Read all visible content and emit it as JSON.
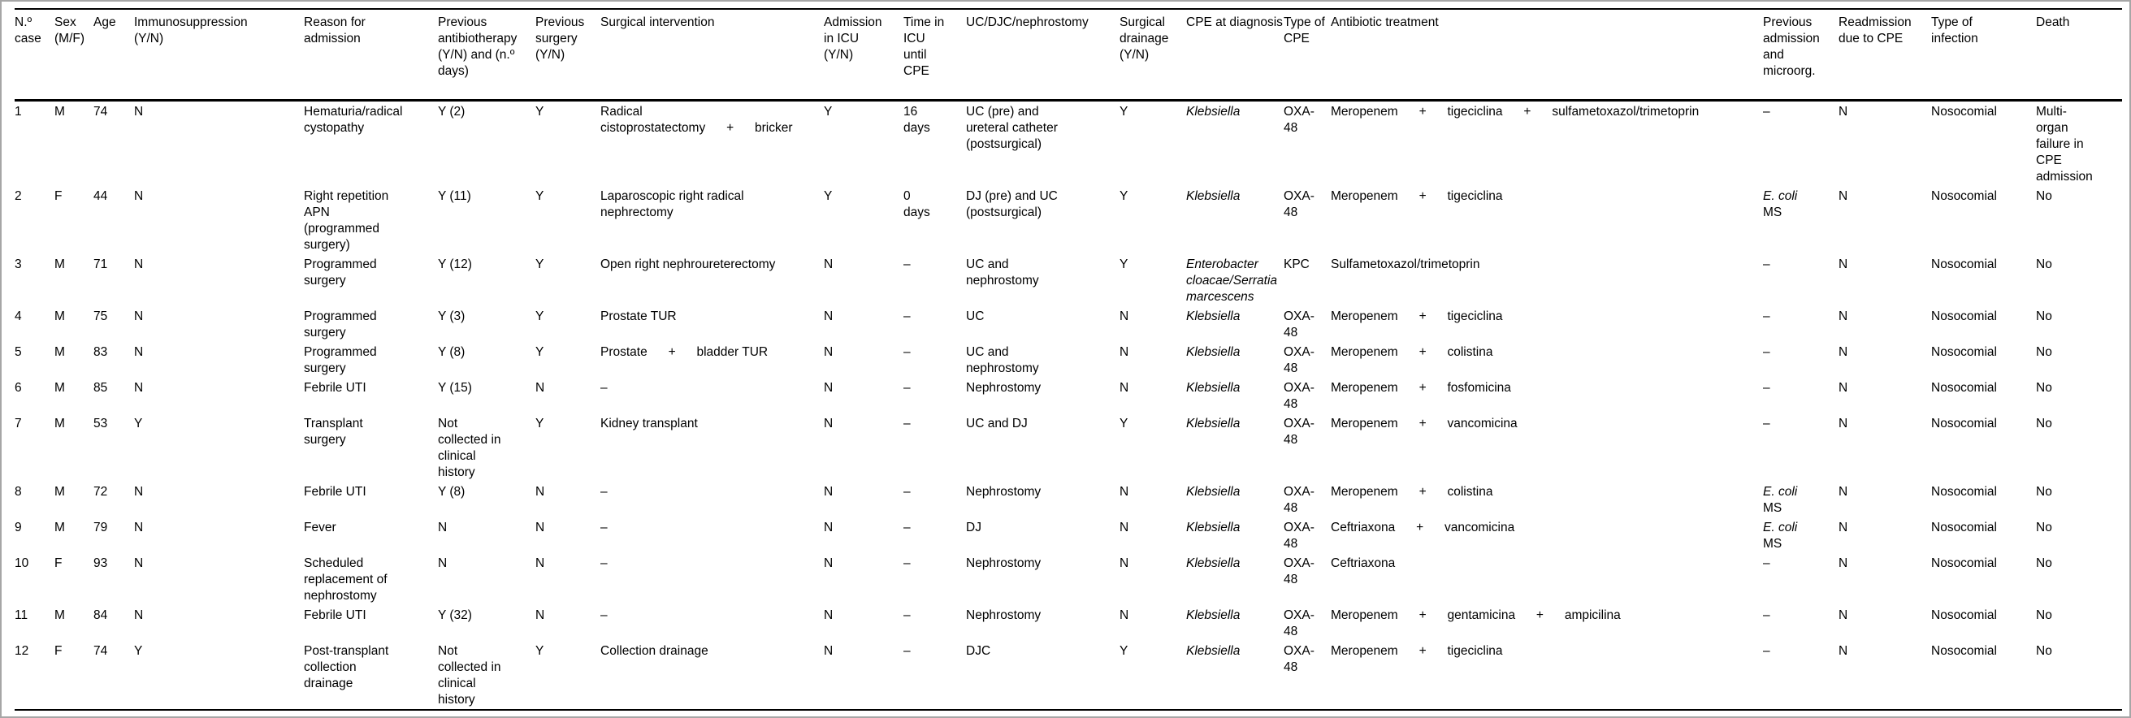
{
  "colors": {
    "background": "#ffffff",
    "text": "#000000",
    "rule": "#000000",
    "frame": "#a6a6a6"
  },
  "table": {
    "columns": [
      {
        "id": "case",
        "label": "N.º\ncase"
      },
      {
        "id": "sex",
        "label": "Sex\n(M/F)"
      },
      {
        "id": "age",
        "label": "Age"
      },
      {
        "id": "immunosuppression",
        "label": "Immunosuppression\n(Y/N)"
      },
      {
        "id": "reason",
        "label": "Reason for\nadmission"
      },
      {
        "id": "prev_antibiotherapy",
        "label": "Previous\nantibiotherapy\n(Y/N) and (n.º\ndays)"
      },
      {
        "id": "prev_surgery",
        "label": "Previous\nsurgery\n(Y/N)"
      },
      {
        "id": "surgical_intervention",
        "label": "Surgical intervention"
      },
      {
        "id": "icu_admission",
        "label": "Admission\nin ICU\n(Y/N)"
      },
      {
        "id": "icu_time",
        "label": "Time in\nICU\nuntil\nCPE"
      },
      {
        "id": "uc_djc_nephrostomy",
        "label": "UC/DJC/nephrostomy"
      },
      {
        "id": "surgical_drainage",
        "label": "Surgical\ndrainage\n(Y/N)"
      },
      {
        "id": "cpe_at_diagnosis",
        "label": "CPE at diagnosis"
      },
      {
        "id": "cpe_type",
        "label": "Type of\nCPE"
      },
      {
        "id": "antibiotic_treatment",
        "label": "Antibiotic treatment"
      },
      {
        "id": "previous_admission",
        "label": "Previous\nadmission\nand\nmicroorg."
      },
      {
        "id": "readmission",
        "label": "Readmission\ndue to CPE"
      },
      {
        "id": "infection_type",
        "label": "Type of\ninfection"
      },
      {
        "id": "death",
        "label": "Death"
      }
    ],
    "rows": [
      {
        "case": "1",
        "sex": "M",
        "age": "74",
        "immunosuppression": "N",
        "reason": "Hematuria/radical\ncystopathy",
        "prev_antibiotherapy": "Y (2)",
        "prev_surgery": "Y",
        "surgical_intervention": "Radical\ncistoprostatectomy   +   bricker",
        "icu_admission": "Y",
        "icu_time": "16\ndays",
        "uc_djc_nephrostomy": "UC (pre) and\nureteral catheter\n(postsurgical)",
        "surgical_drainage": "Y",
        "cpe_at_diagnosis": "Klebsiella",
        "cpe_type": "OXA-\n48",
        "antibiotic_treatment": "Meropenem   +   tigeciclina   +   sulfametoxazol/trimetoprin",
        "previous_admission": {
          "micro": "",
          "note": "–"
        },
        "readmission": "N",
        "infection_type": "Nosocomial",
        "death": "Multi-\norgan\nfailure in\nCPE\nadmission"
      },
      {
        "case": "2",
        "sex": "F",
        "age": "44",
        "immunosuppression": "N",
        "reason": "Right repetition\nAPN\n(programmed\nsurgery)",
        "prev_antibiotherapy": "Y (11)",
        "prev_surgery": "Y",
        "surgical_intervention": "Laparoscopic right radical\nnephrectomy",
        "icu_admission": "Y",
        "icu_time": "0\ndays",
        "uc_djc_nephrostomy": "DJ (pre) and UC\n(postsurgical)",
        "surgical_drainage": "Y",
        "cpe_at_diagnosis": "Klebsiella",
        "cpe_type": "OXA-\n48",
        "antibiotic_treatment": "Meropenem   +   tigeciclina",
        "previous_admission": {
          "micro": "E. coli",
          "note": "MS"
        },
        "readmission": "N",
        "infection_type": "Nosocomial",
        "death": "No"
      },
      {
        "case": "3",
        "sex": "M",
        "age": "71",
        "immunosuppression": "N",
        "reason": "Programmed\nsurgery",
        "prev_antibiotherapy": "Y (12)",
        "prev_surgery": "Y",
        "surgical_intervention": "Open right nephroureterectomy",
        "icu_admission": "N",
        "icu_time": "–",
        "uc_djc_nephrostomy": "UC and\nnephrostomy",
        "surgical_drainage": "Y",
        "cpe_at_diagnosis": "Enterobacter\ncloacae/Serratia\nmarcescens",
        "cpe_type": "KPC",
        "antibiotic_treatment": "Sulfametoxazol/trimetoprin",
        "previous_admission": {
          "micro": "",
          "note": "–"
        },
        "readmission": "N",
        "infection_type": "Nosocomial",
        "death": "No"
      },
      {
        "case": "4",
        "sex": "M",
        "age": "75",
        "immunosuppression": "N",
        "reason": "Programmed\nsurgery",
        "prev_antibiotherapy": "Y (3)",
        "prev_surgery": "Y",
        "surgical_intervention": "Prostate TUR",
        "icu_admission": "N",
        "icu_time": "–",
        "uc_djc_nephrostomy": "UC",
        "surgical_drainage": "N",
        "cpe_at_diagnosis": "Klebsiella",
        "cpe_type": "OXA-\n48",
        "antibiotic_treatment": "Meropenem   +   tigeciclina",
        "previous_admission": {
          "micro": "",
          "note": "–"
        },
        "readmission": "N",
        "infection_type": "Nosocomial",
        "death": "No"
      },
      {
        "case": "5",
        "sex": "M",
        "age": "83",
        "immunosuppression": "N",
        "reason": "Programmed\nsurgery",
        "prev_antibiotherapy": "Y (8)",
        "prev_surgery": "Y",
        "surgical_intervention": "Prostate   +   bladder TUR",
        "icu_admission": "N",
        "icu_time": "–",
        "uc_djc_nephrostomy": "UC and\nnephrostomy",
        "surgical_drainage": "N",
        "cpe_at_diagnosis": "Klebsiella",
        "cpe_type": "OXA-\n48",
        "antibiotic_treatment": "Meropenem   +   colistina",
        "previous_admission": {
          "micro": "",
          "note": "–"
        },
        "readmission": "N",
        "infection_type": "Nosocomial",
        "death": "No"
      },
      {
        "case": "6",
        "sex": "M",
        "age": "85",
        "immunosuppression": "N",
        "reason": "Febrile UTI",
        "prev_antibiotherapy": "Y (15)",
        "prev_surgery": "N",
        "surgical_intervention": "–",
        "icu_admission": "N",
        "icu_time": "–",
        "uc_djc_nephrostomy": "Nephrostomy",
        "surgical_drainage": "N",
        "cpe_at_diagnosis": "Klebsiella",
        "cpe_type": "OXA-\n48",
        "antibiotic_treatment": "Meropenem   +   fosfomicina",
        "previous_admission": {
          "micro": "",
          "note": "–"
        },
        "readmission": "N",
        "infection_type": "Nosocomial",
        "death": "No"
      },
      {
        "case": "7",
        "sex": "M",
        "age": "53",
        "immunosuppression": "Y",
        "reason": "Transplant\nsurgery",
        "prev_antibiotherapy": "Not\ncollected in\nclinical\nhistory",
        "prev_surgery": "Y",
        "surgical_intervention": "Kidney transplant",
        "icu_admission": "N",
        "icu_time": "–",
        "uc_djc_nephrostomy": "UC and DJ",
        "surgical_drainage": "Y",
        "cpe_at_diagnosis": "Klebsiella",
        "cpe_type": "OXA-\n48",
        "antibiotic_treatment": "Meropenem   +   vancomicina",
        "previous_admission": {
          "micro": "",
          "note": "–"
        },
        "readmission": "N",
        "infection_type": "Nosocomial",
        "death": "No"
      },
      {
        "case": "8",
        "sex": "M",
        "age": "72",
        "immunosuppression": "N",
        "reason": "Febrile UTI",
        "prev_antibiotherapy": "Y (8)",
        "prev_surgery": "N",
        "surgical_intervention": "–",
        "icu_admission": "N",
        "icu_time": "–",
        "uc_djc_nephrostomy": "Nephrostomy",
        "surgical_drainage": "N",
        "cpe_at_diagnosis": "Klebsiella",
        "cpe_type": "OXA-\n48",
        "antibiotic_treatment": "Meropenem   +   colistina",
        "previous_admission": {
          "micro": "E. coli",
          "note": "MS"
        },
        "readmission": "N",
        "infection_type": "Nosocomial",
        "death": "No"
      },
      {
        "case": "9",
        "sex": "M",
        "age": "79",
        "immunosuppression": "N",
        "reason": "Fever",
        "prev_antibiotherapy": "N",
        "prev_surgery": "N",
        "surgical_intervention": "–",
        "icu_admission": "N",
        "icu_time": "–",
        "uc_djc_nephrostomy": "DJ",
        "surgical_drainage": "N",
        "cpe_at_diagnosis": "Klebsiella",
        "cpe_type": "OXA-\n48",
        "antibiotic_treatment": "Ceftriaxona   +   vancomicina",
        "previous_admission": {
          "micro": "E. coli",
          "note": "MS"
        },
        "readmission": "N",
        "infection_type": "Nosocomial",
        "death": "No"
      },
      {
        "case": "10",
        "sex": "F",
        "age": "93",
        "immunosuppression": "N",
        "reason": "Scheduled\nreplacement of\nnephrostomy",
        "prev_antibiotherapy": "N",
        "prev_surgery": "N",
        "surgical_intervention": "–",
        "icu_admission": "N",
        "icu_time": "–",
        "uc_djc_nephrostomy": "Nephrostomy",
        "surgical_drainage": "N",
        "cpe_at_diagnosis": "Klebsiella",
        "cpe_type": "OXA-\n48",
        "antibiotic_treatment": "Ceftriaxona",
        "previous_admission": {
          "micro": "",
          "note": "–"
        },
        "readmission": "N",
        "infection_type": "Nosocomial",
        "death": "No"
      },
      {
        "case": "11",
        "sex": "M",
        "age": "84",
        "immunosuppression": "N",
        "reason": "Febrile UTI",
        "prev_antibiotherapy": "Y (32)",
        "prev_surgery": "N",
        "surgical_intervention": "–",
        "icu_admission": "N",
        "icu_time": "–",
        "uc_djc_nephrostomy": "Nephrostomy",
        "surgical_drainage": "N",
        "cpe_at_diagnosis": "Klebsiella",
        "cpe_type": "OXA-\n48",
        "antibiotic_treatment": "Meropenem   +   gentamicina   +   ampicilina",
        "previous_admission": {
          "micro": "",
          "note": "–"
        },
        "readmission": "N",
        "infection_type": "Nosocomial",
        "death": "No"
      },
      {
        "case": "12",
        "sex": "F",
        "age": "74",
        "immunosuppression": "Y",
        "reason": "Post-transplant\ncollection\ndrainage",
        "prev_antibiotherapy": "Not\ncollected in\nclinical\nhistory",
        "prev_surgery": "Y",
        "surgical_intervention": "Collection drainage",
        "icu_admission": "N",
        "icu_time": "–",
        "uc_djc_nephrostomy": "DJC",
        "surgical_drainage": "Y",
        "cpe_at_diagnosis": "Klebsiella",
        "cpe_type": "OXA-\n48",
        "antibiotic_treatment": "Meropenem   +   tigeciclina",
        "previous_admission": {
          "micro": "",
          "note": "–"
        },
        "readmission": "N",
        "infection_type": "Nosocomial",
        "death": "No"
      }
    ]
  }
}
